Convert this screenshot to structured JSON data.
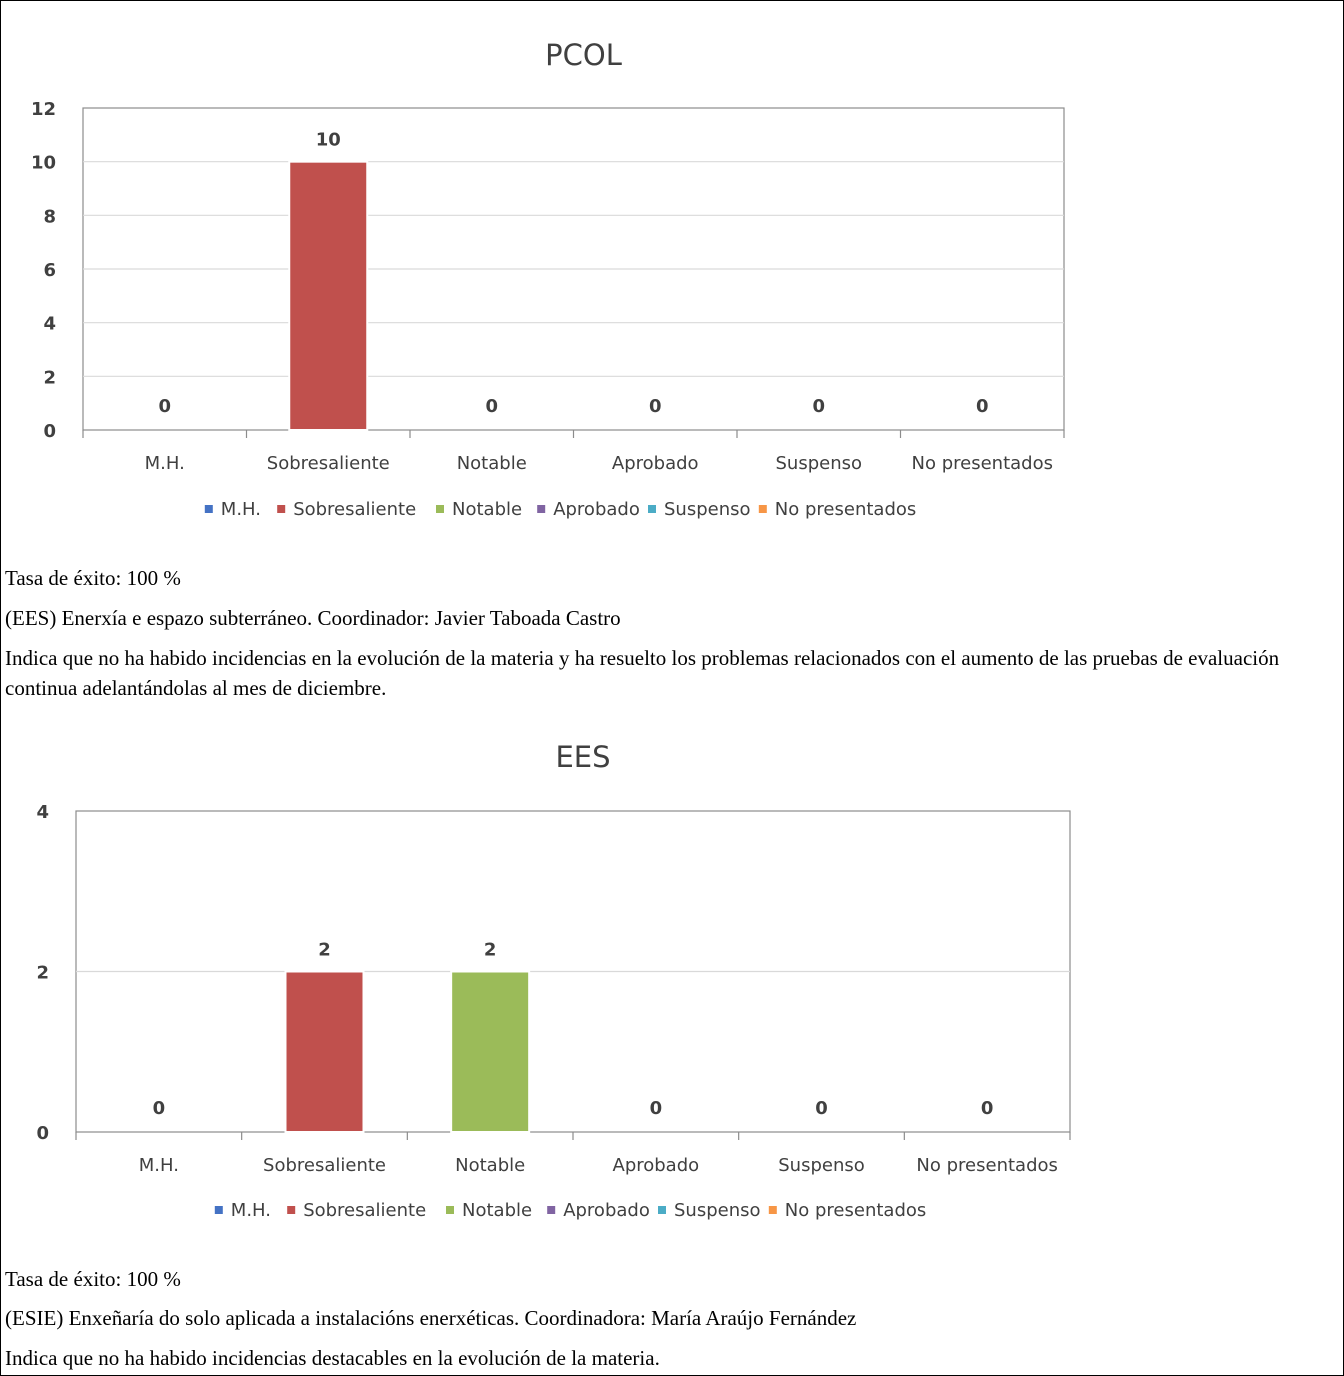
{
  "chart_data": [
    {
      "type": "bar",
      "title": "PCOL",
      "categories": [
        "M.H.",
        "Sobresaliente",
        "Notable",
        "Aprobado",
        "Suspenso",
        "No presentados"
      ],
      "values": [
        0,
        10,
        0,
        0,
        0,
        0
      ],
      "colors": [
        "#4472C4",
        "#C0504D",
        "#9BBB59",
        "#8064A2",
        "#4BACC6",
        "#F79646"
      ],
      "legend": [
        "M.H.",
        "Sobresaliente",
        "Notable",
        "Aprobado",
        "Suspenso",
        "No presentados"
      ],
      "legend_position": "bottom",
      "yticks": [
        0,
        2,
        4,
        6,
        8,
        10,
        12
      ],
      "ylim": [
        0,
        12
      ],
      "grid": true,
      "xlabel": "",
      "ylabel": ""
    },
    {
      "type": "bar",
      "title": "EES",
      "categories": [
        "M.H.",
        "Sobresaliente",
        "Notable",
        "Aprobado",
        "Suspenso",
        "No presentados"
      ],
      "values": [
        0,
        2,
        2,
        0,
        0,
        0
      ],
      "colors": [
        "#4472C4",
        "#C0504D",
        "#9BBB59",
        "#8064A2",
        "#4BACC6",
        "#F79646"
      ],
      "legend": [
        "M.H.",
        "Sobresaliente",
        "Notable",
        "Aprobado",
        "Suspenso",
        "No presentados"
      ],
      "legend_position": "bottom",
      "yticks": [
        0,
        2,
        4
      ],
      "ylim": [
        0,
        4
      ],
      "grid": true,
      "xlabel": "",
      "ylabel": ""
    }
  ],
  "text": {
    "pcol_rate": "Tasa de éxito: 100 %",
    "ees_heading": "(EES) Enerxía e espazo subterráneo. Coordinador: Javier Taboada Castro",
    "ees_note": "Indica que no ha habido incidencias en la evolución de la materia y ha resuelto los problemas relacionados con el aumento de las pruebas de evaluación continua adelantándolas al mes de diciembre.",
    "ees_rate": "Tasa de éxito: 100 %",
    "esie_heading": "(ESIE) Enxeñaría do solo aplicada a instalacións enerxéticas. Coordinadora: María Araújo Fernández",
    "esie_note": "Indica que no ha habido incidencias destacables en la evolución de la materia."
  }
}
